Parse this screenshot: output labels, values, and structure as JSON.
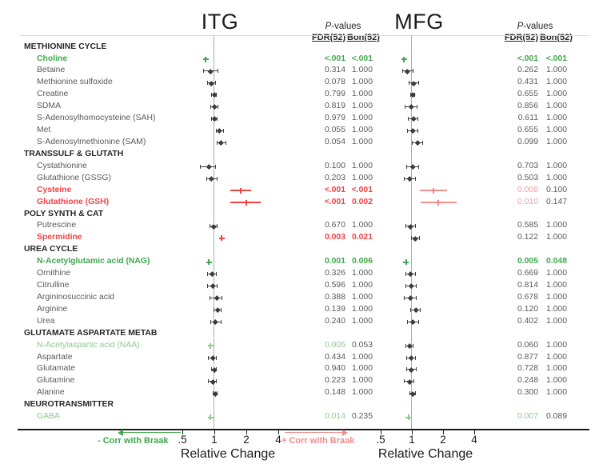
{
  "header": {
    "p_italic": "P",
    "p_rest": "-values",
    "fdr": "FDR(52)",
    "bon": "Bon(52)"
  },
  "legend": {
    "neg": "- Corr with Braak",
    "pos": "+ Corr with Braak"
  },
  "colors": {
    "green": "#3EA94B",
    "lightgreen": "#8DC98E",
    "red": "#F04343",
    "pink": "#F09191",
    "gray_text": "#595959",
    "category_text": "#262626",
    "axis": "#1A1A1A",
    "centerline": "#ADADAD"
  },
  "chart_data": {
    "type": "scatter",
    "layout": "forest-plot",
    "xscale": "log2",
    "xlabel": "Relative Change",
    "xtick_labels": [
      ".5",
      "1",
      "2",
      "4"
    ],
    "xtick_values": [
      0.5,
      1,
      2,
      4
    ],
    "xlim": [
      0.42,
      4.8
    ],
    "regions": [
      {
        "title": "ITG"
      },
      {
        "title": "MFG"
      }
    ],
    "rows": [
      {
        "type": "category",
        "label": "METHIONINE CYCLE"
      },
      {
        "type": "item",
        "label": "Choline",
        "style": "green",
        "ITG": {
          "rc": 0.83,
          "lo": 0.8,
          "hi": 0.87,
          "style": "green",
          "fdr": "<.001",
          "bon": "<.001",
          "fdr_style": "green",
          "bon_style": "green"
        },
        "MFG": {
          "rc": 0.84,
          "lo": 0.81,
          "hi": 0.88,
          "style": "green",
          "fdr": "<.001",
          "bon": "<.001",
          "fdr_style": "green",
          "bon_style": "green"
        }
      },
      {
        "type": "item",
        "label": "Betaine",
        "style": "gray",
        "ITG": {
          "rc": 0.92,
          "lo": 0.78,
          "hi": 1.09,
          "style": "gray",
          "fdr": "0.314",
          "bon": "1.000",
          "fdr_style": "gray",
          "bon_style": "gray"
        },
        "MFG": {
          "rc": 0.91,
          "lo": 0.81,
          "hi": 1.04,
          "style": "gray",
          "fdr": "0.262",
          "bon": "1.000",
          "fdr_style": "gray",
          "bon_style": "gray"
        }
      },
      {
        "type": "item",
        "label": "Methionine sulfoxide",
        "style": "gray",
        "ITG": {
          "rc": 0.93,
          "lo": 0.86,
          "hi": 1.04,
          "style": "gray",
          "fdr": "0.078",
          "bon": "1.000",
          "fdr_style": "gray",
          "bon_style": "gray"
        },
        "MFG": {
          "rc": 1.04,
          "lo": 0.93,
          "hi": 1.17,
          "style": "gray",
          "fdr": "0.431",
          "bon": "1.000",
          "fdr_style": "gray",
          "bon_style": "gray"
        }
      },
      {
        "type": "item",
        "label": "Creatine",
        "style": "gray",
        "ITG": {
          "rc": 1.0,
          "lo": 0.94,
          "hi": 1.06,
          "style": "gray",
          "fdr": "0.799",
          "bon": "1.000",
          "fdr_style": "gray",
          "bon_style": "gray"
        },
        "MFG": {
          "rc": 1.02,
          "lo": 0.96,
          "hi": 1.08,
          "style": "gray",
          "fdr": "0.655",
          "bon": "1.000",
          "fdr_style": "gray",
          "bon_style": "gray"
        }
      },
      {
        "type": "item",
        "label": "SDMA",
        "style": "gray",
        "ITG": {
          "rc": 1.0,
          "lo": 0.92,
          "hi": 1.09,
          "style": "gray",
          "fdr": "0.819",
          "bon": "1.000",
          "fdr_style": "gray",
          "bon_style": "gray"
        },
        "MFG": {
          "rc": 0.98,
          "lo": 0.85,
          "hi": 1.13,
          "style": "gray",
          "fdr": "0.856",
          "bon": "1.000",
          "fdr_style": "gray",
          "bon_style": "gray"
        }
      },
      {
        "type": "item",
        "label": "S-Adenosylhomocysteine (SAH)",
        "style": "gray",
        "ITG": {
          "rc": 1.0,
          "lo": 0.93,
          "hi": 1.07,
          "style": "gray",
          "fdr": "0.979",
          "bon": "1.000",
          "fdr_style": "gray",
          "bon_style": "gray"
        },
        "MFG": {
          "rc": 1.04,
          "lo": 0.92,
          "hi": 1.16,
          "style": "gray",
          "fdr": "0.611",
          "bon": "1.000",
          "fdr_style": "gray",
          "bon_style": "gray"
        }
      },
      {
        "type": "item",
        "label": "Met",
        "style": "gray",
        "ITG": {
          "rc": 1.11,
          "lo": 1.04,
          "hi": 1.23,
          "style": "gray",
          "fdr": "0.055",
          "bon": "1.000",
          "fdr_style": "gray",
          "bon_style": "gray"
        },
        "MFG": {
          "rc": 1.02,
          "lo": 0.9,
          "hi": 1.16,
          "style": "gray",
          "fdr": "0.655",
          "bon": "1.000",
          "fdr_style": "gray",
          "bon_style": "gray"
        }
      },
      {
        "type": "item",
        "label": "S-Adenosylmethionine (SAM)",
        "style": "gray",
        "ITG": {
          "rc": 1.15,
          "lo": 1.05,
          "hi": 1.3,
          "style": "gray",
          "fdr": "0.054",
          "bon": "1.000",
          "fdr_style": "gray",
          "bon_style": "gray"
        },
        "MFG": {
          "rc": 1.13,
          "lo": 1.0,
          "hi": 1.28,
          "style": "gray",
          "fdr": "0.099",
          "bon": "1.000",
          "fdr_style": "gray",
          "bon_style": "gray"
        }
      },
      {
        "type": "category",
        "label": "TRANSSULF & GLUTATH"
      },
      {
        "type": "item",
        "label": "Cystathionine",
        "style": "gray",
        "ITG": {
          "rc": 0.89,
          "lo": 0.73,
          "hi": 1.04,
          "style": "gray",
          "fdr": "0.100",
          "bon": "1.000",
          "fdr_style": "gray",
          "bon_style": "gray"
        },
        "MFG": {
          "rc": 1.02,
          "lo": 0.88,
          "hi": 1.17,
          "style": "gray",
          "fdr": "0.703",
          "bon": "1.000",
          "fdr_style": "gray",
          "bon_style": "gray"
        }
      },
      {
        "type": "item",
        "label": "Glutathione (GSSG)",
        "style": "gray",
        "ITG": {
          "rc": 0.93,
          "lo": 0.84,
          "hi": 1.07,
          "style": "gray",
          "fdr": "0.203",
          "bon": "1.000",
          "fdr_style": "gray",
          "bon_style": "gray"
        },
        "MFG": {
          "rc": 0.95,
          "lo": 0.84,
          "hi": 1.09,
          "style": "gray",
          "fdr": "0.503",
          "bon": "1.000",
          "fdr_style": "gray",
          "bon_style": "gray"
        }
      },
      {
        "type": "item",
        "label": "Cysteine",
        "style": "red",
        "ITG": {
          "rc": 1.77,
          "lo": 1.41,
          "hi": 2.22,
          "style": "red",
          "fdr": "<.001",
          "bon": "<.001",
          "fdr_style": "red",
          "bon_style": "red"
        },
        "MFG": {
          "rc": 1.62,
          "lo": 1.2,
          "hi": 2.19,
          "style": "pink",
          "fdr": "0.008",
          "bon": "0.100",
          "fdr_style": "pink",
          "bon_style": "gray"
        }
      },
      {
        "type": "item",
        "label": "Glutathione (GSH)",
        "style": "red",
        "ITG": {
          "rc": 2.0,
          "lo": 1.41,
          "hi": 2.73,
          "style": "red",
          "fdr": "<.001",
          "bon": "0.002",
          "fdr_style": "red",
          "bon_style": "red"
        },
        "MFG": {
          "rc": 1.8,
          "lo": 1.22,
          "hi": 2.72,
          "style": "pink",
          "fdr": "0.010",
          "bon": "0.147",
          "fdr_style": "pink",
          "bon_style": "gray"
        }
      },
      {
        "type": "category",
        "label": "POLY SYNTH & CAT"
      },
      {
        "type": "item",
        "label": "Putrescine",
        "style": "gray",
        "ITG": {
          "rc": 0.98,
          "lo": 0.9,
          "hi": 1.07,
          "style": "gray",
          "fdr": "0.670",
          "bon": "1.000",
          "fdr_style": "gray",
          "bon_style": "gray"
        },
        "MFG": {
          "rc": 0.96,
          "lo": 0.87,
          "hi": 1.09,
          "style": "gray",
          "fdr": "0.585",
          "bon": "1.000",
          "fdr_style": "gray",
          "bon_style": "gray"
        }
      },
      {
        "type": "item",
        "label": "Spermidine",
        "style": "red",
        "ITG": {
          "rc": 1.17,
          "lo": 1.1,
          "hi": 1.24,
          "style": "red",
          "fdr": "0.003",
          "bon": "0.021",
          "fdr_style": "red",
          "bon_style": "red"
        },
        "MFG": {
          "rc": 1.07,
          "lo": 0.98,
          "hi": 1.19,
          "style": "gray",
          "fdr": "0.122",
          "bon": "1.000",
          "fdr_style": "gray",
          "bon_style": "gray"
        }
      },
      {
        "type": "category",
        "label": "UREA CYCLE"
      },
      {
        "type": "item",
        "label": "N-Acetylglutamic acid (NAG)",
        "style": "green",
        "ITG": {
          "rc": 0.89,
          "lo": 0.85,
          "hi": 0.93,
          "style": "green",
          "fdr": "0.001",
          "bon": "0.006",
          "fdr_style": "green",
          "bon_style": "green"
        },
        "MFG": {
          "rc": 0.88,
          "lo": 0.84,
          "hi": 0.92,
          "style": "green",
          "fdr": "0.005",
          "bon": "0.048",
          "fdr_style": "green",
          "bon_style": "green"
        }
      },
      {
        "type": "item",
        "label": "Ornithine",
        "style": "gray",
        "ITG": {
          "rc": 0.95,
          "lo": 0.86,
          "hi": 1.05,
          "style": "gray",
          "fdr": "0.326",
          "bon": "1.000",
          "fdr_style": "gray",
          "bon_style": "gray"
        },
        "MFG": {
          "rc": 0.96,
          "lo": 0.87,
          "hi": 1.09,
          "style": "gray",
          "fdr": "0.669",
          "bon": "1.000",
          "fdr_style": "gray",
          "bon_style": "gray"
        }
      },
      {
        "type": "item",
        "label": "Citrulline",
        "style": "gray",
        "ITG": {
          "rc": 0.97,
          "lo": 0.86,
          "hi": 1.07,
          "style": "gray",
          "fdr": "0.596",
          "bon": "1.000",
          "fdr_style": "gray",
          "bon_style": "gray"
        },
        "MFG": {
          "rc": 0.98,
          "lo": 0.87,
          "hi": 1.11,
          "style": "gray",
          "fdr": "0.814",
          "bon": "1.000",
          "fdr_style": "gray",
          "bon_style": "gray"
        }
      },
      {
        "type": "item",
        "label": "Argininosuccinic acid",
        "style": "gray",
        "ITG": {
          "rc": 1.05,
          "lo": 0.9,
          "hi": 1.19,
          "style": "gray",
          "fdr": "0.388",
          "bon": "1.000",
          "fdr_style": "gray",
          "bon_style": "gray"
        },
        "MFG": {
          "rc": 0.96,
          "lo": 0.84,
          "hi": 1.11,
          "style": "gray",
          "fdr": "0.678",
          "bon": "1.000",
          "fdr_style": "gray",
          "bon_style": "gray"
        }
      },
      {
        "type": "item",
        "label": "Arginine",
        "style": "gray",
        "ITG": {
          "rc": 1.07,
          "lo": 0.98,
          "hi": 1.17,
          "style": "gray",
          "fdr": "0.139",
          "bon": "1.000",
          "fdr_style": "gray",
          "bon_style": "gray"
        },
        "MFG": {
          "rc": 1.09,
          "lo": 0.97,
          "hi": 1.22,
          "style": "gray",
          "fdr": "0.120",
          "bon": "1.000",
          "fdr_style": "gray",
          "bon_style": "gray"
        }
      },
      {
        "type": "item",
        "label": "Urea",
        "style": "gray",
        "ITG": {
          "rc": 1.02,
          "lo": 0.92,
          "hi": 1.17,
          "style": "gray",
          "fdr": "0.240",
          "bon": "1.000",
          "fdr_style": "gray",
          "bon_style": "gray"
        },
        "MFG": {
          "rc": 1.02,
          "lo": 0.9,
          "hi": 1.17,
          "style": "gray",
          "fdr": "0.402",
          "bon": "1.000",
          "fdr_style": "gray",
          "bon_style": "gray"
        }
      },
      {
        "type": "category",
        "label": "GLUTAMATE ASPARTATE METAB"
      },
      {
        "type": "item",
        "label": "N-Acetylaspartic acid (NAA)",
        "style": "lightgreen",
        "ITG": {
          "rc": 0.92,
          "lo": 0.88,
          "hi": 0.96,
          "style": "lightgreen",
          "fdr": "0.005",
          "bon": "0.053",
          "fdr_style": "lightgreen",
          "bon_style": "gray"
        },
        "MFG": {
          "rc": 0.95,
          "lo": 0.87,
          "hi": 1.04,
          "style": "gray",
          "fdr": "0.060",
          "bon": "1.000",
          "fdr_style": "gray",
          "bon_style": "gray"
        }
      },
      {
        "type": "item",
        "label": "Aspartate",
        "style": "gray",
        "ITG": {
          "rc": 0.97,
          "lo": 0.87,
          "hi": 1.05,
          "style": "gray",
          "fdr": "0.434",
          "bon": "1.000",
          "fdr_style": "gray",
          "bon_style": "gray"
        },
        "MFG": {
          "rc": 0.98,
          "lo": 0.88,
          "hi": 1.09,
          "style": "gray",
          "fdr": "0.877",
          "bon": "1.000",
          "fdr_style": "gray",
          "bon_style": "gray"
        }
      },
      {
        "type": "item",
        "label": "Glutamate",
        "style": "gray",
        "ITG": {
          "rc": 1.0,
          "lo": 0.94,
          "hi": 1.06,
          "style": "gray",
          "fdr": "0.940",
          "bon": "1.000",
          "fdr_style": "gray",
          "bon_style": "gray"
        },
        "MFG": {
          "rc": 0.98,
          "lo": 0.88,
          "hi": 1.11,
          "style": "gray",
          "fdr": "0.728",
          "bon": "1.000",
          "fdr_style": "gray",
          "bon_style": "gray"
        }
      },
      {
        "type": "item",
        "label": "Glutamine",
        "style": "gray",
        "ITG": {
          "rc": 0.97,
          "lo": 0.87,
          "hi": 1.05,
          "style": "gray",
          "fdr": "0.223",
          "bon": "1.000",
          "fdr_style": "gray",
          "bon_style": "gray"
        },
        "MFG": {
          "rc": 0.95,
          "lo": 0.84,
          "hi": 1.06,
          "style": "gray",
          "fdr": "0.248",
          "bon": "1.000",
          "fdr_style": "gray",
          "bon_style": "gray"
        }
      },
      {
        "type": "item",
        "label": "Alanine",
        "style": "gray",
        "ITG": {
          "rc": 1.02,
          "lo": 0.97,
          "hi": 1.07,
          "style": "gray",
          "fdr": "0.148",
          "bon": "1.000",
          "fdr_style": "gray",
          "bon_style": "gray"
        },
        "MFG": {
          "rc": 1.02,
          "lo": 0.95,
          "hi": 1.09,
          "style": "gray",
          "fdr": "0.300",
          "bon": "1.000",
          "fdr_style": "gray",
          "bon_style": "gray"
        }
      },
      {
        "type": "category",
        "label": "NEUROTRANSMITTER"
      },
      {
        "type": "item",
        "label": "GABA",
        "style": "lightgreen",
        "ITG": {
          "rc": 0.92,
          "lo": 0.89,
          "hi": 0.95,
          "style": "lightgreen",
          "fdr": "0.014",
          "bon": "0.235",
          "fdr_style": "lightgreen",
          "bon_style": "gray"
        },
        "MFG": {
          "rc": 0.93,
          "lo": 0.9,
          "hi": 0.96,
          "style": "lightgreen",
          "fdr": "0.007",
          "bon": "0.089",
          "fdr_style": "lightgreen",
          "bon_style": "gray"
        }
      }
    ]
  }
}
